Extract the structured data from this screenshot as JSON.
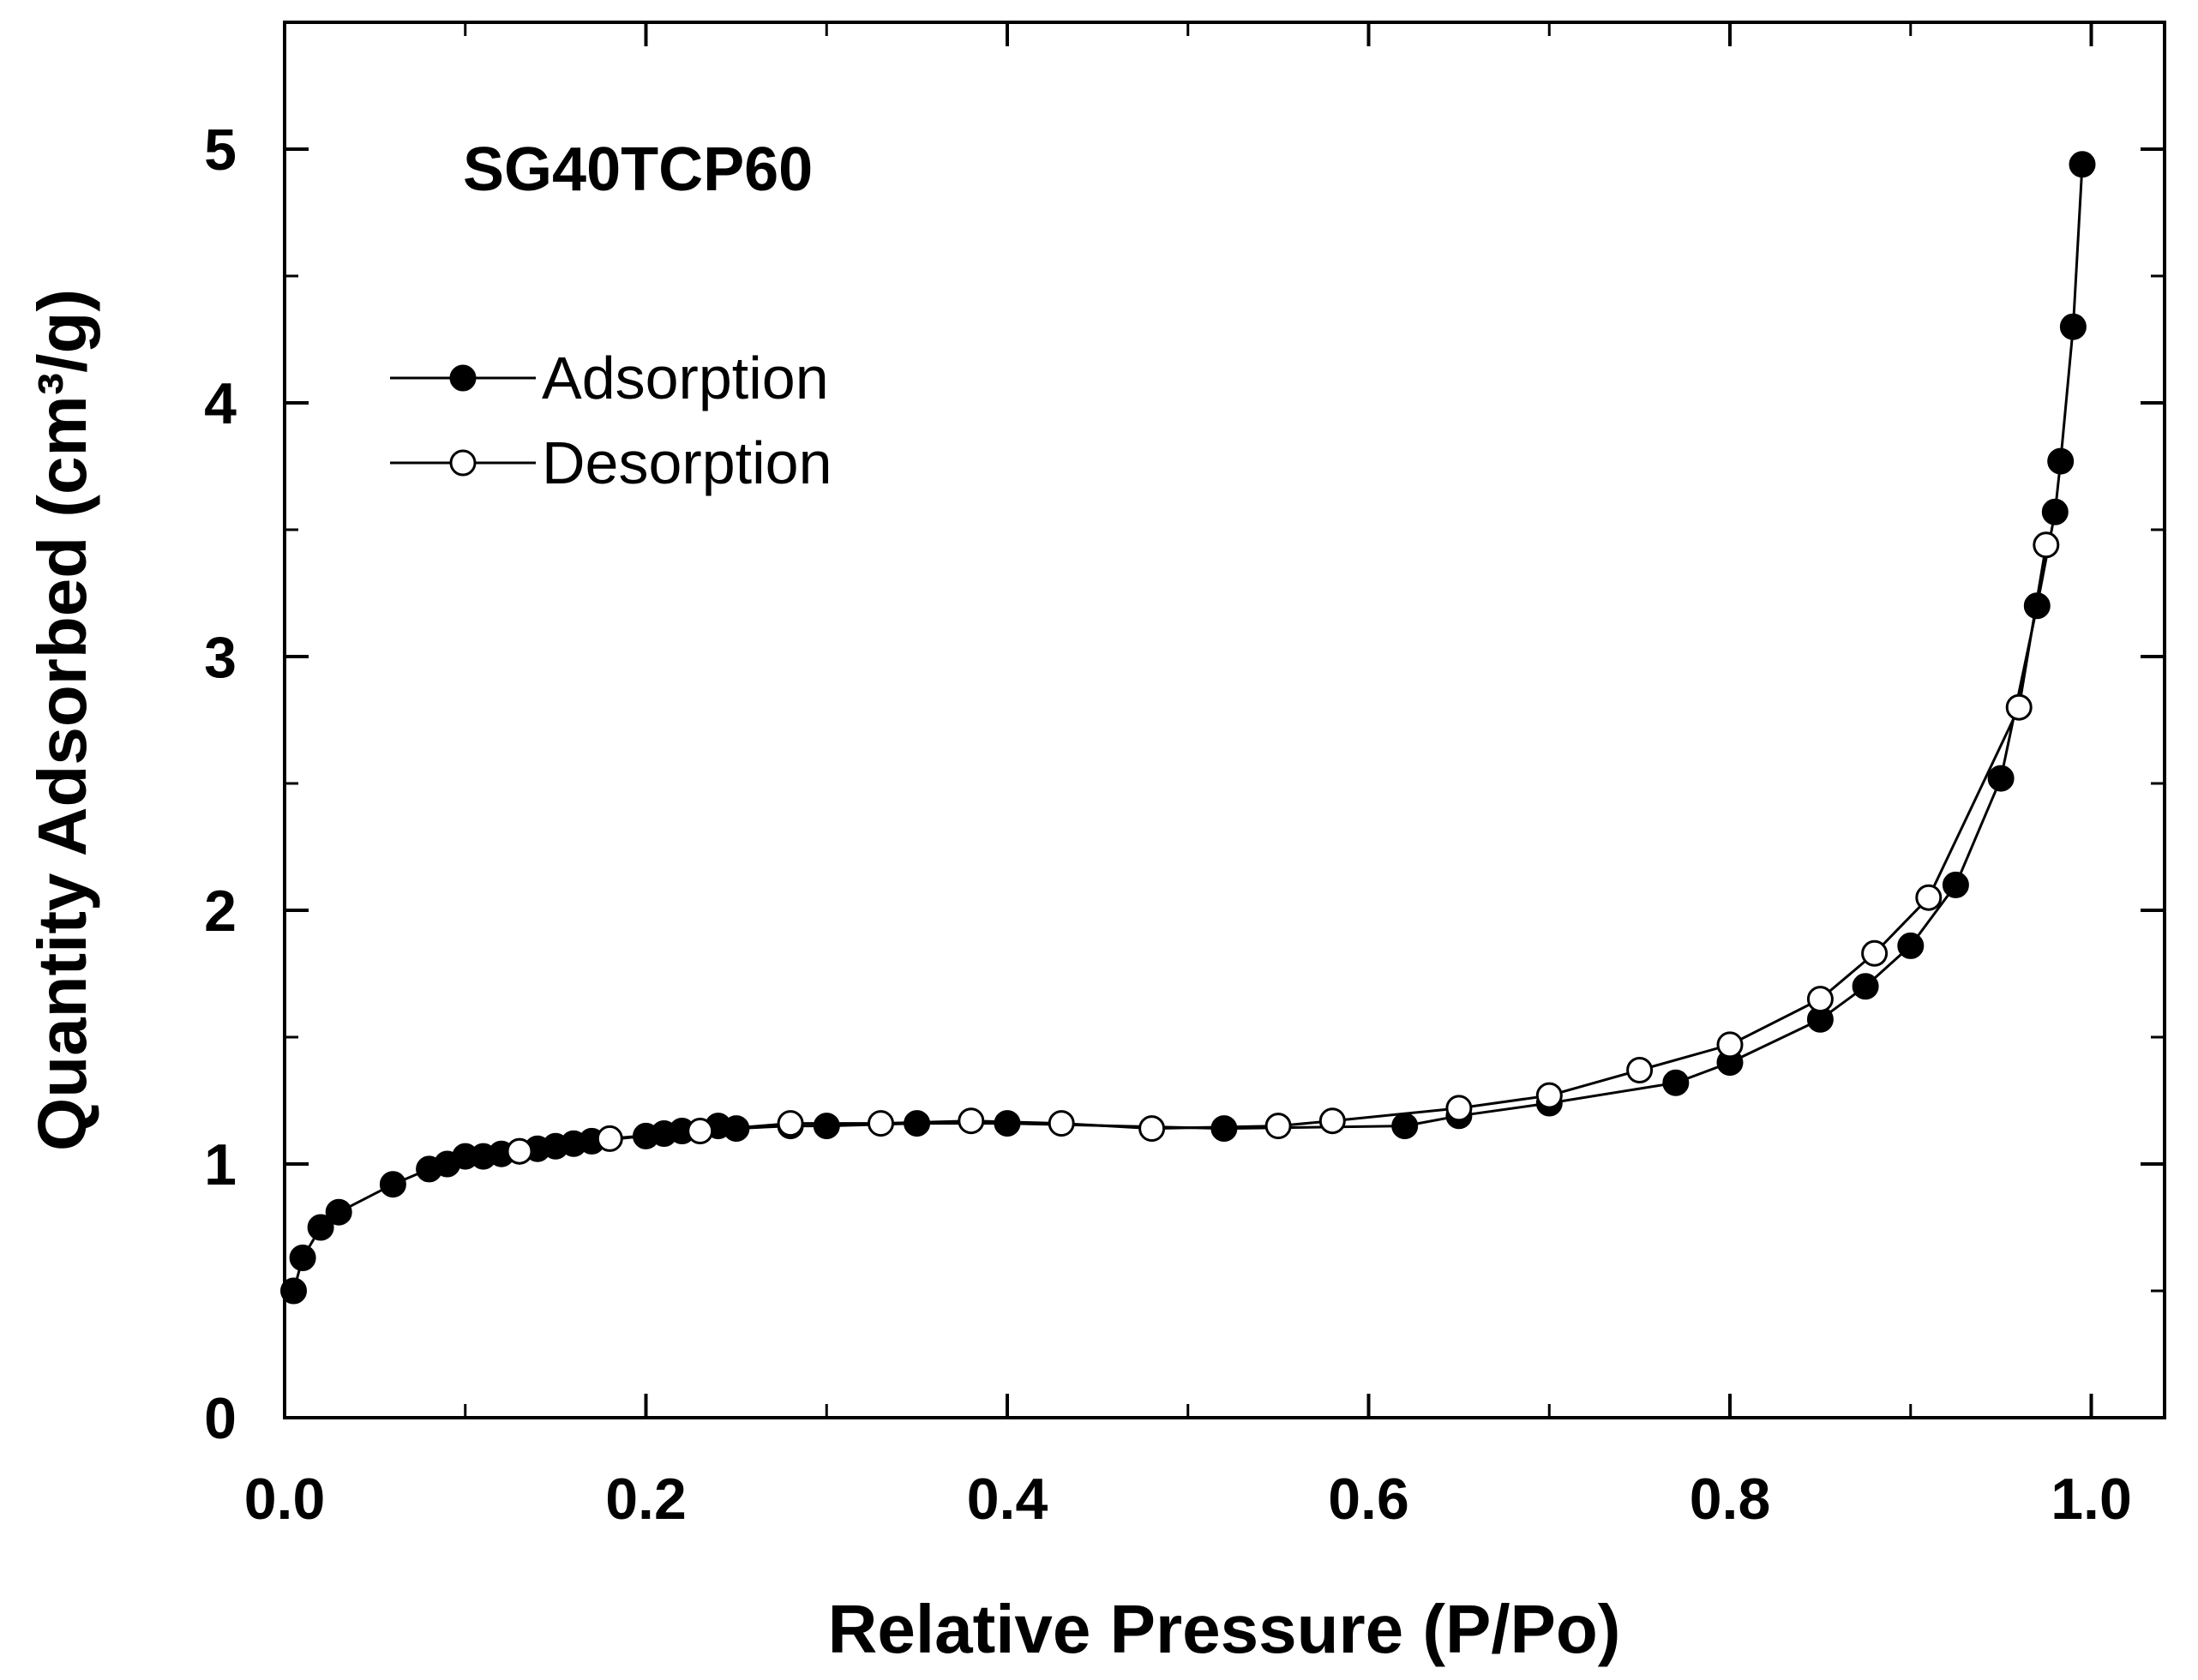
{
  "chart_data": {
    "type": "scatter",
    "title": "",
    "annotation": "SG40TCP60",
    "xlabel": "Relative Pressure (P/Po)",
    "ylabel": "Quantity Adsorbed (cm³/g)",
    "xlim": [
      0.0,
      1.05
    ],
    "ylim": [
      0,
      5.5
    ],
    "x_major_ticks": [
      0.0,
      0.2,
      0.4,
      0.6,
      0.8,
      1.0
    ],
    "x_tick_labels": [
      "0.0",
      "0.2",
      "0.4",
      "0.6",
      "0.8",
      "1.0"
    ],
    "x_minor_ticks": [
      0.1,
      0.3,
      0.5,
      0.7,
      0.9
    ],
    "y_major_ticks": [
      0,
      1,
      2,
      3,
      4,
      5
    ],
    "y_tick_labels": [
      "0",
      "1",
      "2",
      "3",
      "4",
      "5"
    ],
    "y_minor_ticks": [
      0.5,
      1.5,
      2.5,
      3.5,
      4.5
    ],
    "grid": false,
    "legend_position": "top-left",
    "series": [
      {
        "name": "Adsorption",
        "marker": "filled-circle",
        "color": "#000000",
        "x": [
          0.005,
          0.01,
          0.02,
          0.03,
          0.06,
          0.08,
          0.09,
          0.1,
          0.11,
          0.12,
          0.13,
          0.14,
          0.15,
          0.16,
          0.17,
          0.2,
          0.21,
          0.22,
          0.24,
          0.25,
          0.28,
          0.3,
          0.35,
          0.4,
          0.52,
          0.62,
          0.65,
          0.7,
          0.77,
          0.8,
          0.85,
          0.875,
          0.9,
          0.925,
          0.95,
          0.97,
          0.98,
          0.983,
          0.99,
          0.995
        ],
        "y": [
          0.5,
          0.63,
          0.75,
          0.81,
          0.92,
          0.98,
          1.0,
          1.03,
          1.03,
          1.04,
          1.05,
          1.06,
          1.07,
          1.08,
          1.09,
          1.11,
          1.12,
          1.13,
          1.15,
          1.14,
          1.15,
          1.15,
          1.16,
          1.16,
          1.14,
          1.15,
          1.19,
          1.24,
          1.32,
          1.4,
          1.57,
          1.7,
          1.86,
          2.1,
          2.52,
          3.2,
          3.57,
          3.77,
          4.3,
          4.94
        ]
      },
      {
        "name": "Desorption",
        "marker": "open-circle",
        "color": "#000000",
        "x": [
          0.975,
          0.96,
          0.91,
          0.88,
          0.85,
          0.8,
          0.75,
          0.7,
          0.65,
          0.58,
          0.55,
          0.48,
          0.43,
          0.38,
          0.33,
          0.28,
          0.23,
          0.18,
          0.13
        ],
        "y": [
          3.44,
          2.8,
          2.05,
          1.83,
          1.65,
          1.47,
          1.37,
          1.27,
          1.22,
          1.17,
          1.15,
          1.14,
          1.16,
          1.17,
          1.16,
          1.16,
          1.13,
          1.1,
          1.05
        ]
      }
    ]
  }
}
